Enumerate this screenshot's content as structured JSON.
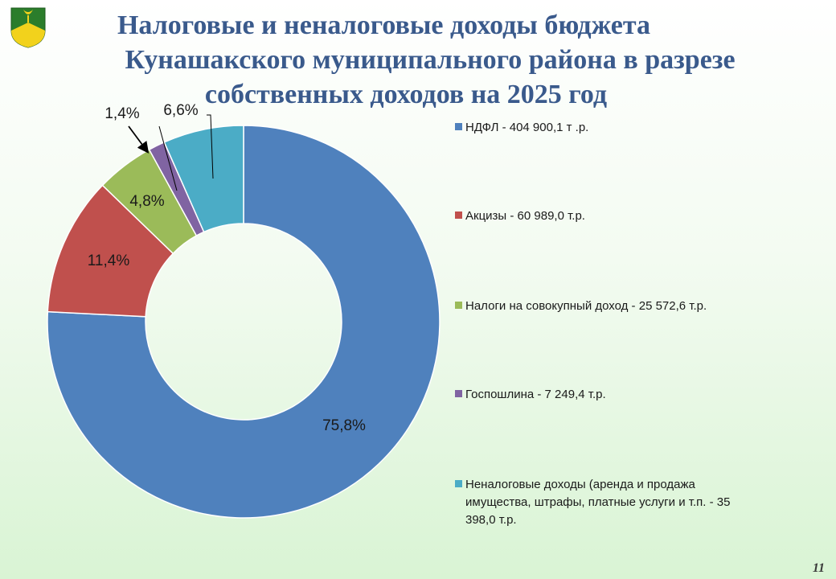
{
  "title": {
    "line1": "Налоговые и неналоговые доходы бюджета",
    "line2": "Кунашакского муниципального района в разрезе",
    "line3": "собственных доходов на 2025 год"
  },
  "page_number": "11",
  "colors": {
    "title": "#3a5a8c",
    "ndfl": "#4f81bd",
    "excise": "#c0504d",
    "tax_income": "#9bbb59",
    "duty": "#8064a2",
    "nontax": "#4bacc6"
  },
  "emblem_icon": "kunashak-coat-of-arms-icon",
  "chart_data": {
    "type": "pie",
    "donut": true,
    "slices": [
      {
        "legend": "НДФЛ - 404 900,1 т .р.",
        "value": 404900.1,
        "percent": 75.8,
        "label": "75,8%",
        "color": "#4f81bd"
      },
      {
        "legend": "Акцизы - 60 989,0 т.р.",
        "value": 60989.0,
        "percent": 11.4,
        "label": "11,4%",
        "color": "#c0504d"
      },
      {
        "legend": "Налоги на совокупный доход - 25 572,6 т.р.",
        "value": 25572.6,
        "percent": 4.8,
        "label": "4,8%",
        "color": "#9bbb59"
      },
      {
        "legend": "Госпошлина - 7 249,4 т.р.",
        "value": 7249.4,
        "percent": 1.4,
        "label": "1,4%",
        "color": "#8064a2"
      },
      {
        "legend": "Неналоговые доходы (аренда и продажа имущества, штрафы, платные услуги и т.п. - 35 398,0 т.р.",
        "value": 35398.0,
        "percent": 6.6,
        "label": "6,6%",
        "color": "#4bacc6"
      }
    ],
    "legend_position": "right"
  }
}
